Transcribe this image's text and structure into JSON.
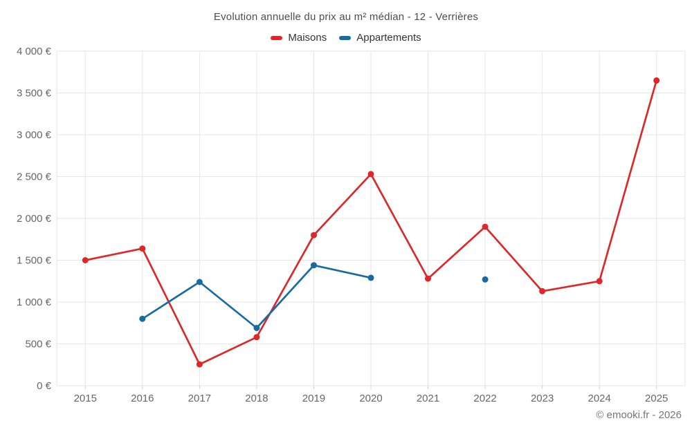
{
  "title": "Evolution annuelle du prix au m² médian - 12 - Verrières",
  "copyright": "© emooki.fr - 2026",
  "colors": {
    "maisons": "#dc2828",
    "appartements": "#176ba0",
    "gridline": "#e6e6e6",
    "tick": "#cfcfcf",
    "axis_text": "#666666",
    "title_text": "#4d4d4d"
  },
  "chart_data": {
    "type": "line",
    "title": "Evolution annuelle du prix au m² médian - 12 - Verrières",
    "categories": [
      "2015",
      "2016",
      "2017",
      "2018",
      "2019",
      "2020",
      "2021",
      "2022",
      "2023",
      "2024",
      "2025"
    ],
    "series": [
      {
        "name": "Maisons",
        "color": "#dc2828",
        "values": [
          1500,
          1640,
          255,
          580,
          1800,
          2530,
          1280,
          1900,
          1130,
          1250,
          3650
        ]
      },
      {
        "name": "Appartements",
        "color": "#176ba0",
        "values": [
          null,
          800,
          1240,
          690,
          1440,
          1290,
          null,
          1270,
          null,
          null,
          null
        ]
      }
    ],
    "xlabel": "",
    "ylabel": "",
    "ylim": [
      0,
      4000
    ],
    "y_ticks": [
      0,
      500,
      1000,
      1500,
      2000,
      2500,
      3000,
      3500,
      4000
    ],
    "y_tick_labels": [
      "0 €",
      "500 €",
      "1 000 €",
      "1 500 €",
      "2 000 €",
      "2 500 €",
      "3 000 €",
      "3 500 €",
      "4 000 €"
    ],
    "grid": true,
    "legend_position": "top"
  }
}
